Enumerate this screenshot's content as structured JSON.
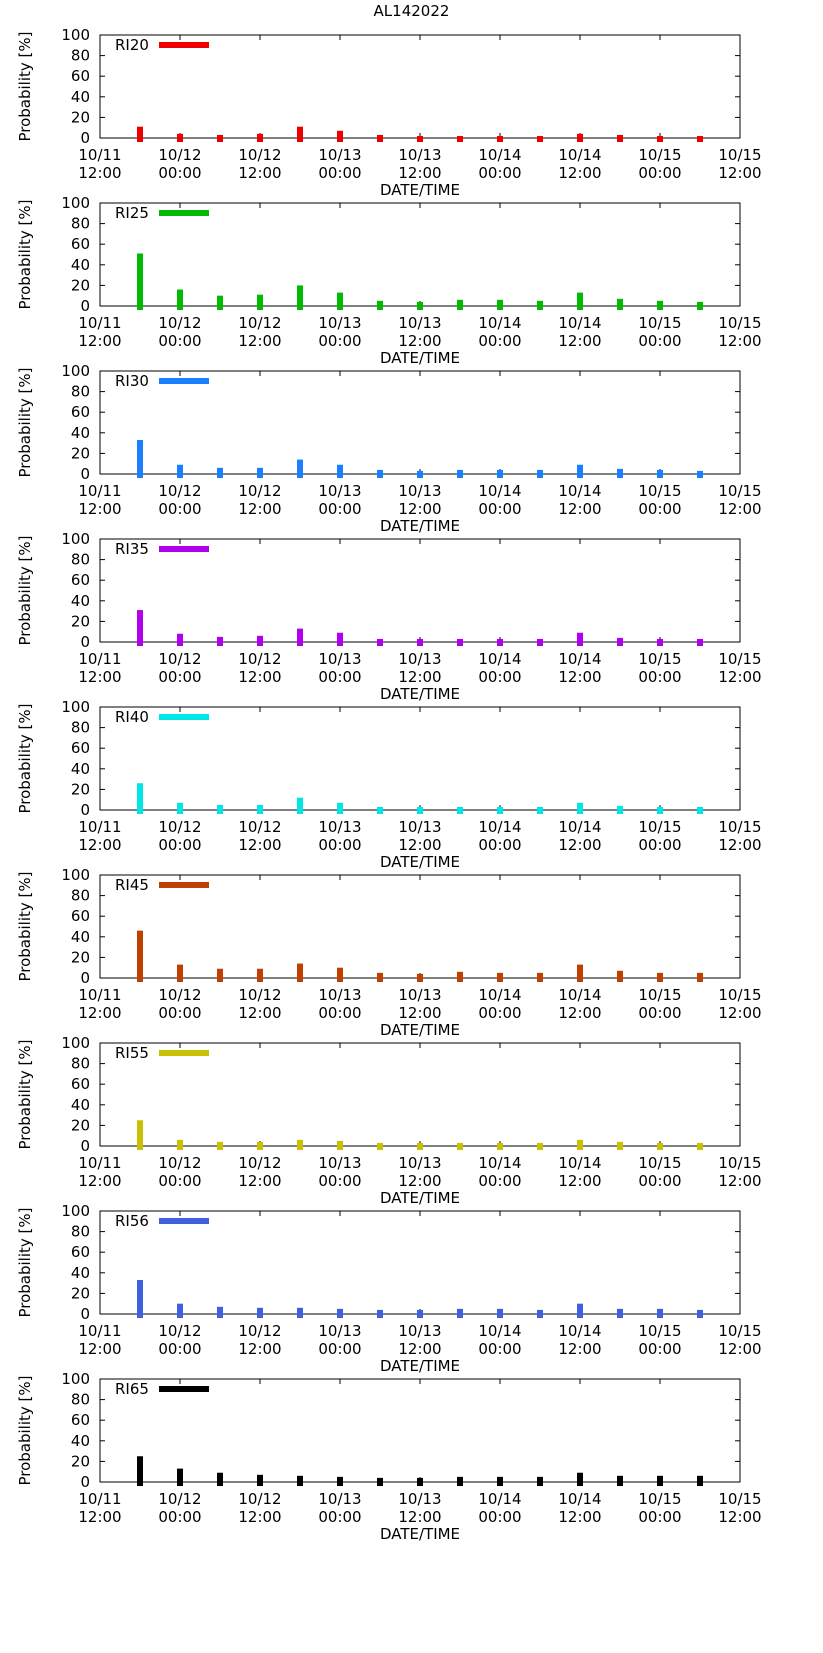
{
  "title": "AL142022",
  "chart_data": {
    "type": "bar",
    "title": "AL142022",
    "xlabel": "DATE/TIME",
    "ylabel": "Probability [%]",
    "ylim": [
      0,
      100
    ],
    "yticks": [
      "0",
      "20",
      "40",
      "60",
      "80",
      "100"
    ],
    "xlim_hours": [
      0,
      96
    ],
    "xticks": [
      {
        "line1": "10/11",
        "line2": "12:00"
      },
      {
        "line1": "10/12",
        "line2": "00:00"
      },
      {
        "line1": "10/12",
        "line2": "12:00"
      },
      {
        "line1": "10/13",
        "line2": "00:00"
      },
      {
        "line1": "10/13",
        "line2": "12:00"
      },
      {
        "line1": "10/14",
        "line2": "00:00"
      },
      {
        "line1": "10/14",
        "line2": "12:00"
      },
      {
        "line1": "10/15",
        "line2": "00:00"
      },
      {
        "line1": "10/15",
        "line2": "12:00"
      }
    ],
    "x_hours": [
      6,
      12,
      18,
      24,
      30,
      36,
      42,
      48,
      54,
      60,
      66,
      72,
      78,
      84,
      90
    ],
    "series": [
      {
        "name": "RI20",
        "color": "#ee0000",
        "values": [
          11,
          4,
          3,
          4,
          11,
          7,
          3,
          2,
          2,
          2,
          2,
          4,
          3,
          2,
          2
        ]
      },
      {
        "name": "RI25",
        "color": "#00bb00",
        "values": [
          51,
          16,
          10,
          11,
          20,
          13,
          5,
          4,
          6,
          6,
          5,
          13,
          7,
          5,
          4
        ]
      },
      {
        "name": "RI30",
        "color": "#1a80ff",
        "values": [
          33,
          9,
          6,
          6,
          14,
          9,
          4,
          3,
          4,
          4,
          4,
          9,
          5,
          4,
          3
        ]
      },
      {
        "name": "RI35",
        "color": "#b000ee",
        "values": [
          31,
          8,
          5,
          6,
          13,
          9,
          3,
          3,
          3,
          3,
          3,
          9,
          4,
          3,
          3
        ]
      },
      {
        "name": "RI40",
        "color": "#00e5e5",
        "values": [
          26,
          7,
          5,
          5,
          12,
          7,
          3,
          3,
          3,
          3,
          3,
          7,
          4,
          3,
          3
        ]
      },
      {
        "name": "RI45",
        "color": "#c04000",
        "values": [
          46,
          13,
          9,
          9,
          14,
          10,
          5,
          4,
          6,
          5,
          5,
          13,
          7,
          5,
          5
        ]
      },
      {
        "name": "RI55",
        "color": "#c8c000",
        "values": [
          25,
          6,
          4,
          4,
          6,
          5,
          3,
          3,
          3,
          3,
          3,
          6,
          4,
          3,
          3
        ]
      },
      {
        "name": "RI56",
        "color": "#4060e0",
        "values": [
          33,
          10,
          7,
          6,
          6,
          5,
          4,
          4,
          5,
          5,
          4,
          10,
          5,
          5,
          4
        ]
      },
      {
        "name": "RI65",
        "color": "#000000",
        "values": [
          25,
          13,
          9,
          7,
          6,
          5,
          4,
          4,
          5,
          5,
          5,
          9,
          6,
          6,
          6
        ]
      }
    ]
  }
}
